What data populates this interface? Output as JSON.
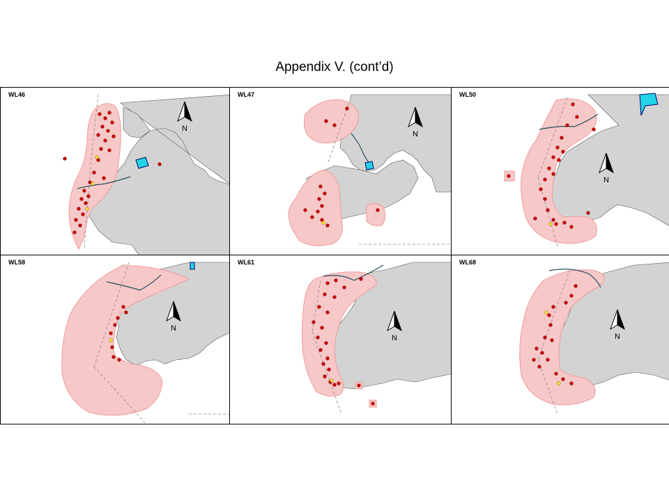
{
  "title": "Appendix V.  (cont’d)",
  "north_label": "N",
  "colors": {
    "land": "#d3d3d3",
    "range": "#f7c8c8",
    "range_edge": "#ef9a9a",
    "sighting": "#cc0000",
    "sighting_alt": "#ffe033",
    "cyan_feature": "#22d4e6",
    "route_line": "#1f4e5a",
    "boundary": "#888888"
  },
  "panels": [
    {
      "label": "WL46"
    },
    {
      "label": "WL47"
    },
    {
      "label": "WL50"
    },
    {
      "label": "WL58"
    },
    {
      "label": "WL61"
    },
    {
      "label": "WL68"
    }
  ]
}
